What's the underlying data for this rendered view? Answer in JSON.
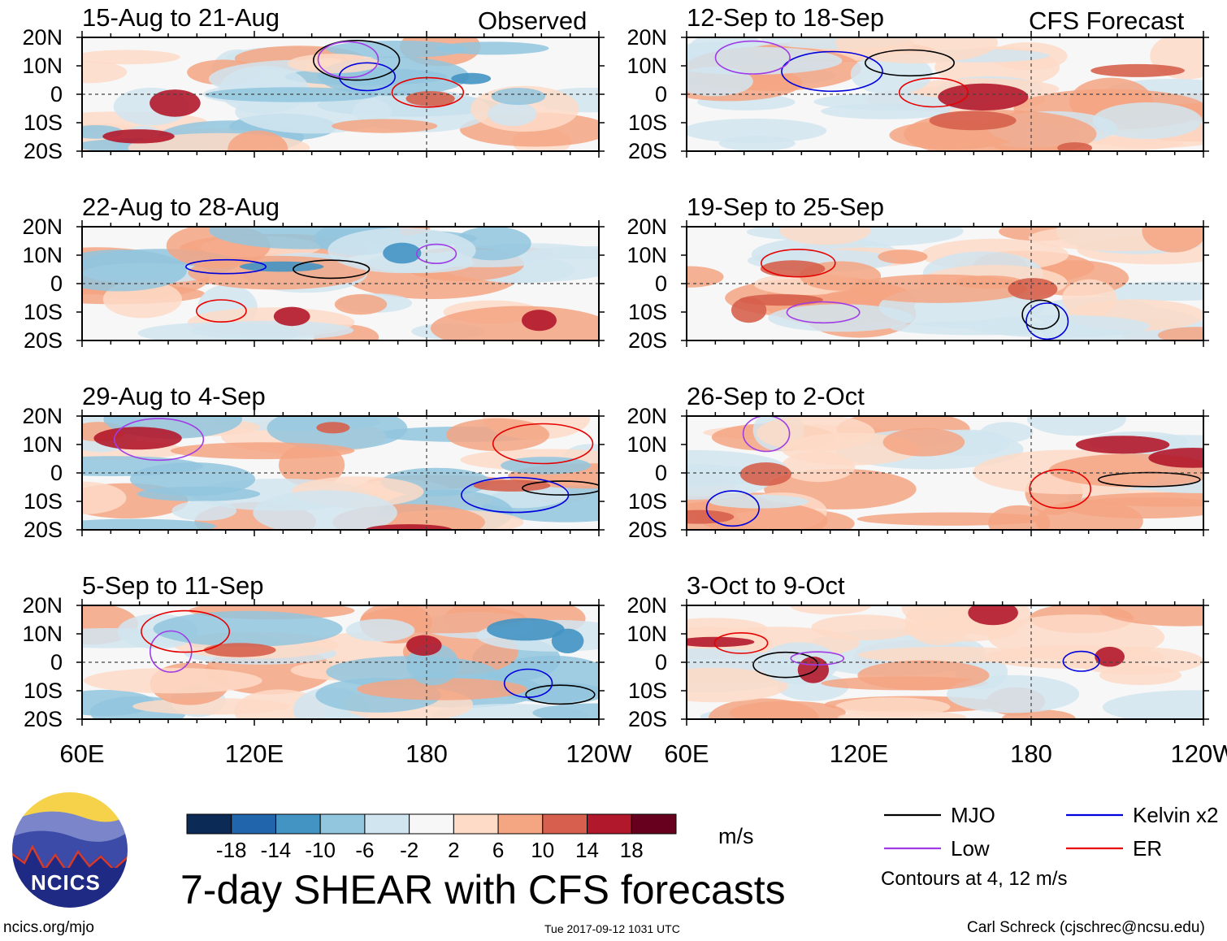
{
  "chart_data": {
    "type": "heatmap",
    "title": "7-day SHEAR with CFS forecasts",
    "units": "m/s",
    "columns": [
      {
        "label": "Observed"
      },
      {
        "label": "CFS Forecast"
      }
    ],
    "panels": [
      {
        "id": "obs-1",
        "column": 0,
        "row": 0,
        "title": "15-Aug to 21-Aug"
      },
      {
        "id": "obs-2",
        "column": 0,
        "row": 1,
        "title": "22-Aug to 28-Aug"
      },
      {
        "id": "obs-3",
        "column": 0,
        "row": 2,
        "title": "29-Aug to 4-Sep"
      },
      {
        "id": "obs-4",
        "column": 0,
        "row": 3,
        "title": "5-Sep to 11-Sep"
      },
      {
        "id": "fc-1",
        "column": 1,
        "row": 0,
        "title": "12-Sep to 18-Sep"
      },
      {
        "id": "fc-2",
        "column": 1,
        "row": 1,
        "title": "19-Sep to 25-Sep"
      },
      {
        "id": "fc-3",
        "column": 1,
        "row": 2,
        "title": "26-Sep to 2-Oct"
      },
      {
        "id": "fc-4",
        "column": 1,
        "row": 3,
        "title": "3-Oct to 9-Oct"
      }
    ],
    "y_ticks": [
      "20N",
      "10N",
      "0",
      "10S",
      "20S"
    ],
    "x_ticks": [
      "60E",
      "120E",
      "180",
      "120W"
    ],
    "y_range": [
      -20,
      20
    ],
    "x_range": [
      60,
      240
    ],
    "colorbar": {
      "tick_labels": [
        "-18",
        "-14",
        "-10",
        "-6",
        "-2",
        "2",
        "6",
        "10",
        "14",
        "18"
      ],
      "colors": [
        "#0b2a55",
        "#2166ac",
        "#4393c3",
        "#92c5de",
        "#d1e5f0",
        "#f7f7f7",
        "#fddbc7",
        "#f4a582",
        "#d6604d",
        "#b2182b",
        "#67001f"
      ]
    },
    "legend": [
      {
        "label": "MJO",
        "color": "#000000"
      },
      {
        "label": "Kelvin x2",
        "color": "#0000dd"
      },
      {
        "label": "Low",
        "color": "#a03ce6"
      },
      {
        "label": "ER",
        "color": "#e60000"
      }
    ],
    "contour_note": "Contours at 4, 12 m/s"
  },
  "footer": {
    "site": "ncics.org/mjo",
    "timestamp": "Tue 2017-09-12 1031 UTC",
    "author": "Carl Schreck (cjschrec@ncsu.edu)"
  },
  "logo": {
    "text": "NCICS"
  }
}
